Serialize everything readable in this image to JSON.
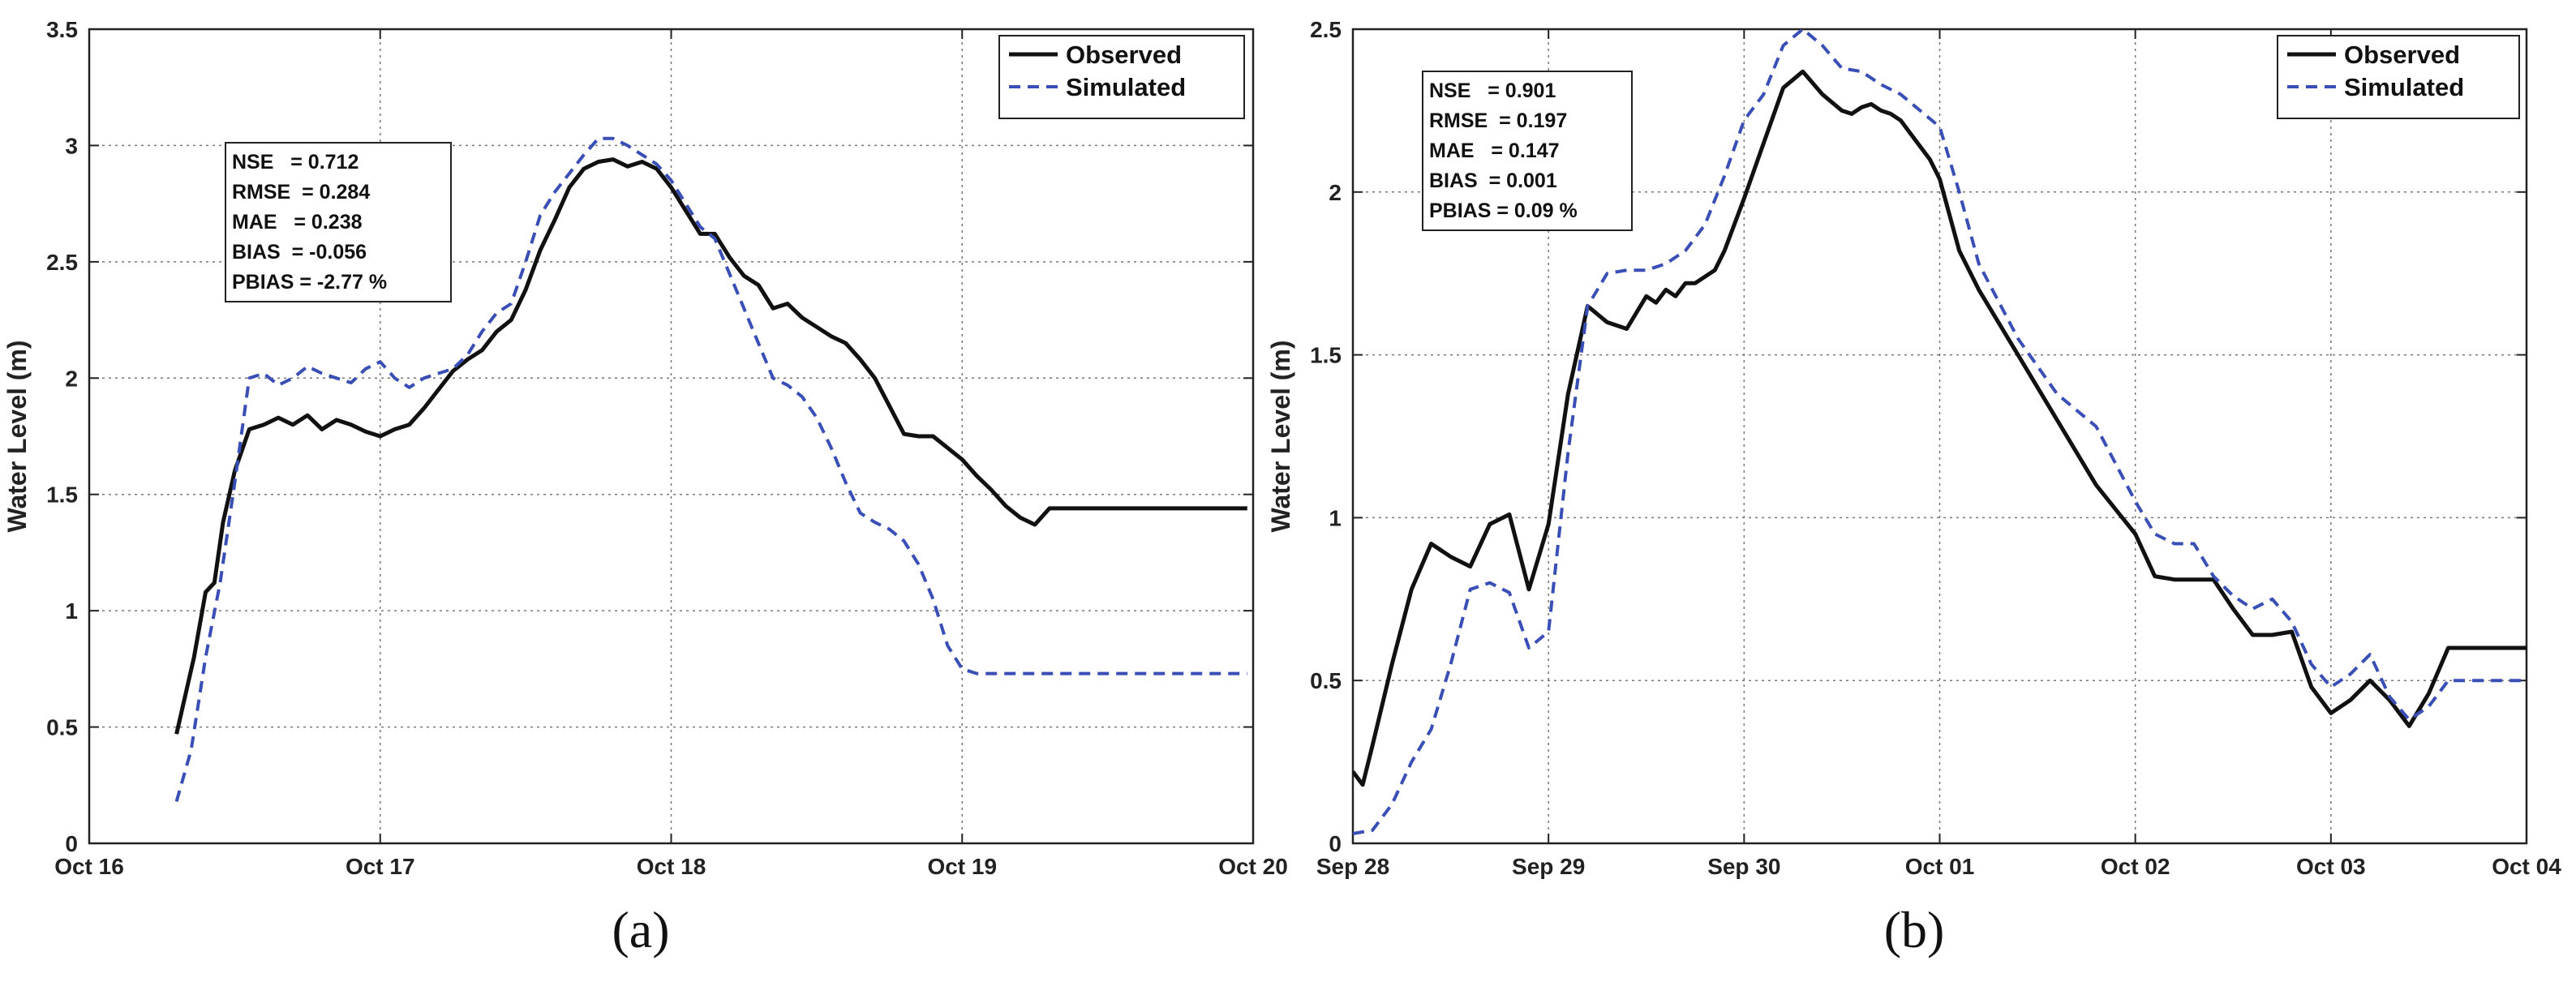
{
  "colors": {
    "observed": "#111111",
    "simulated": "#3a4fb5",
    "grid": "#777777",
    "axis": "#222222"
  },
  "chart_data": [
    {
      "type": "line",
      "panel_label": "(a)",
      "ylabel": "Water Level (m)",
      "xlabel": "",
      "xlim": [
        0,
        4
      ],
      "ylim": [
        0,
        3.5
      ],
      "xticks": [
        0,
        1,
        2,
        3,
        4
      ],
      "xtick_labels": [
        "Oct 16",
        "Oct 17",
        "Oct 18",
        "Oct 19",
        "Oct 20"
      ],
      "yticks": [
        0,
        0.5,
        1,
        1.5,
        2,
        2.5,
        3,
        3.5
      ],
      "ytick_labels": [
        "0",
        "0.5",
        "1",
        "1.5",
        "2",
        "2.5",
        "3",
        "3.5"
      ],
      "grid": true,
      "legend_position": "top-right",
      "stats": [
        "NSE   = 0.712",
        "RMSE  = 0.284",
        "MAE   = 0.238",
        "BIAS  = -0.056",
        "PBIAS = -2.77 %"
      ],
      "series": [
        {
          "name": "Observed",
          "style": "solid",
          "x": [
            0.3,
            0.36,
            0.4,
            0.43,
            0.46,
            0.5,
            0.55,
            0.6,
            0.65,
            0.7,
            0.75,
            0.8,
            0.85,
            0.9,
            0.95,
            1.0,
            1.05,
            1.1,
            1.15,
            1.2,
            1.25,
            1.3,
            1.35,
            1.4,
            1.45,
            1.5,
            1.55,
            1.6,
            1.65,
            1.7,
            1.75,
            1.8,
            1.85,
            1.9,
            1.95,
            2.0,
            2.05,
            2.1,
            2.15,
            2.2,
            2.25,
            2.3,
            2.35,
            2.4,
            2.45,
            2.5,
            2.55,
            2.6,
            2.65,
            2.7,
            2.75,
            2.8,
            2.85,
            2.9,
            2.95,
            3.0,
            3.05,
            3.1,
            3.15,
            3.2,
            3.25,
            3.3,
            3.35,
            3.4,
            3.45,
            3.5,
            3.55,
            3.6,
            3.65,
            3.7,
            3.75,
            3.8,
            3.85,
            3.9,
            3.95,
            3.98
          ],
          "y": [
            0.47,
            0.8,
            1.08,
            1.12,
            1.38,
            1.6,
            1.78,
            1.8,
            1.83,
            1.8,
            1.84,
            1.78,
            1.82,
            1.8,
            1.77,
            1.75,
            1.78,
            1.8,
            1.87,
            1.95,
            2.03,
            2.08,
            2.12,
            2.2,
            2.25,
            2.38,
            2.55,
            2.68,
            2.82,
            2.9,
            2.93,
            2.94,
            2.91,
            2.93,
            2.9,
            2.82,
            2.72,
            2.62,
            2.62,
            2.52,
            2.44,
            2.4,
            2.3,
            2.32,
            2.26,
            2.22,
            2.18,
            2.15,
            2.08,
            2.0,
            1.88,
            1.76,
            1.75,
            1.75,
            1.7,
            1.65,
            1.58,
            1.52,
            1.45,
            1.4,
            1.37,
            1.44,
            1.44,
            1.44,
            1.44,
            1.44,
            1.44,
            1.44,
            1.44,
            1.44,
            1.44,
            1.44,
            1.44,
            1.44,
            1.44,
            1.44
          ]
        },
        {
          "name": "Simulated",
          "style": "dashed",
          "x": [
            0.3,
            0.35,
            0.4,
            0.45,
            0.5,
            0.55,
            0.6,
            0.65,
            0.7,
            0.75,
            0.8,
            0.85,
            0.9,
            0.95,
            1.0,
            1.05,
            1.1,
            1.15,
            1.2,
            1.25,
            1.3,
            1.35,
            1.4,
            1.45,
            1.5,
            1.55,
            1.6,
            1.65,
            1.7,
            1.75,
            1.8,
            1.85,
            1.9,
            1.95,
            2.0,
            2.05,
            2.1,
            2.15,
            2.2,
            2.25,
            2.3,
            2.35,
            2.4,
            2.45,
            2.5,
            2.55,
            2.6,
            2.65,
            2.7,
            2.75,
            2.8,
            2.85,
            2.9,
            2.95,
            3.0,
            3.05,
            3.1,
            3.15,
            3.2,
            3.25,
            3.3,
            3.35,
            3.4,
            3.45,
            3.5,
            3.55,
            3.6,
            3.65,
            3.7,
            3.75,
            3.8,
            3.85,
            3.9,
            3.95,
            3.98
          ],
          "y": [
            0.18,
            0.4,
            0.8,
            1.12,
            1.55,
            2.0,
            2.02,
            1.97,
            2.0,
            2.05,
            2.02,
            2.0,
            1.98,
            2.04,
            2.07,
            2.0,
            1.96,
            2.0,
            2.02,
            2.04,
            2.1,
            2.2,
            2.28,
            2.32,
            2.5,
            2.7,
            2.8,
            2.88,
            2.96,
            3.03,
            3.03,
            3.0,
            2.96,
            2.92,
            2.85,
            2.75,
            2.65,
            2.6,
            2.45,
            2.3,
            2.15,
            2.0,
            1.97,
            1.92,
            1.83,
            1.7,
            1.55,
            1.42,
            1.38,
            1.35,
            1.3,
            1.2,
            1.05,
            0.85,
            0.75,
            0.73,
            0.73,
            0.73,
            0.73,
            0.73,
            0.73,
            0.73,
            0.73,
            0.73,
            0.73,
            0.73,
            0.73,
            0.73,
            0.73,
            0.73,
            0.73,
            0.73,
            0.73,
            0.73,
            0.73
          ]
        }
      ]
    },
    {
      "type": "line",
      "panel_label": "(b)",
      "ylabel": "Water Level (m)",
      "xlabel": "",
      "xlim": [
        0,
        6
      ],
      "ylim": [
        0,
        2.5
      ],
      "xticks": [
        0,
        1,
        2,
        3,
        4,
        5,
        6
      ],
      "xtick_labels": [
        "Sep 28",
        "Sep 29",
        "Sep 30",
        "Oct 01",
        "Oct 02",
        "Oct 03",
        "Oct 04"
      ],
      "yticks": [
        0,
        0.5,
        1,
        1.5,
        2,
        2.5
      ],
      "ytick_labels": [
        "0",
        "0.5",
        "1",
        "1.5",
        "2",
        "2.5"
      ],
      "grid": true,
      "legend_position": "top-right",
      "stats": [
        "NSE   = 0.901",
        "RMSE  = 0.197",
        "MAE   = 0.147",
        "BIAS  = 0.001",
        "PBIAS = 0.09 %"
      ],
      "series": [
        {
          "name": "Observed",
          "style": "solid",
          "x": [
            0.0,
            0.05,
            0.1,
            0.2,
            0.3,
            0.4,
            0.5,
            0.6,
            0.7,
            0.8,
            0.9,
            1.0,
            1.1,
            1.2,
            1.3,
            1.4,
            1.5,
            1.55,
            1.6,
            1.65,
            1.7,
            1.75,
            1.8,
            1.85,
            1.9,
            2.0,
            2.1,
            2.2,
            2.3,
            2.4,
            2.5,
            2.55,
            2.6,
            2.65,
            2.7,
            2.75,
            2.8,
            2.85,
            2.9,
            2.95,
            3.0,
            3.1,
            3.2,
            3.4,
            3.6,
            3.8,
            4.0,
            4.1,
            4.2,
            4.3,
            4.4,
            4.5,
            4.6,
            4.7,
            4.8,
            4.9,
            5.0,
            5.1,
            5.2,
            5.3,
            5.4,
            5.5,
            5.6,
            5.7,
            5.8,
            5.9,
            6.0
          ],
          "y": [
            0.22,
            0.18,
            0.3,
            0.55,
            0.78,
            0.92,
            0.88,
            0.85,
            0.98,
            1.01,
            0.78,
            0.98,
            1.38,
            1.65,
            1.6,
            1.58,
            1.68,
            1.66,
            1.7,
            1.68,
            1.72,
            1.72,
            1.74,
            1.76,
            1.82,
            1.98,
            2.15,
            2.32,
            2.37,
            2.3,
            2.25,
            2.24,
            2.26,
            2.27,
            2.25,
            2.24,
            2.22,
            2.18,
            2.14,
            2.1,
            2.04,
            1.82,
            1.7,
            1.5,
            1.3,
            1.1,
            0.95,
            0.82,
            0.81,
            0.81,
            0.81,
            0.72,
            0.64,
            0.64,
            0.65,
            0.48,
            0.4,
            0.44,
            0.5,
            0.44,
            0.36,
            0.46,
            0.6,
            0.6,
            0.6,
            0.6,
            0.6
          ],
          "__comment__": null
        },
        {
          "name": "Simulated",
          "style": "dashed",
          "x": [
            0.0,
            0.1,
            0.2,
            0.3,
            0.4,
            0.5,
            0.6,
            0.7,
            0.8,
            0.9,
            1.0,
            1.1,
            1.2,
            1.3,
            1.4,
            1.5,
            1.6,
            1.7,
            1.8,
            1.9,
            2.0,
            2.1,
            2.2,
            2.3,
            2.4,
            2.5,
            2.6,
            2.7,
            2.8,
            2.9,
            3.0,
            3.1,
            3.2,
            3.4,
            3.6,
            3.8,
            4.0,
            4.1,
            4.2,
            4.3,
            4.4,
            4.5,
            4.6,
            4.7,
            4.8,
            4.9,
            5.0,
            5.1,
            5.2,
            5.3,
            5.4,
            5.5,
            5.6,
            5.7,
            5.8,
            5.9,
            6.0
          ],
          "y": [
            0.03,
            0.04,
            0.12,
            0.25,
            0.35,
            0.55,
            0.78,
            0.8,
            0.77,
            0.6,
            0.65,
            1.2,
            1.65,
            1.75,
            1.76,
            1.76,
            1.78,
            1.82,
            1.9,
            2.05,
            2.22,
            2.3,
            2.45,
            2.5,
            2.45,
            2.38,
            2.37,
            2.33,
            2.3,
            2.25,
            2.2,
            2.0,
            1.78,
            1.55,
            1.38,
            1.28,
            1.05,
            0.95,
            0.92,
            0.92,
            0.82,
            0.76,
            0.72,
            0.75,
            0.68,
            0.55,
            0.48,
            0.52,
            0.58,
            0.45,
            0.38,
            0.42,
            0.5,
            0.5,
            0.5,
            0.5,
            0.5
          ]
        }
      ]
    }
  ]
}
